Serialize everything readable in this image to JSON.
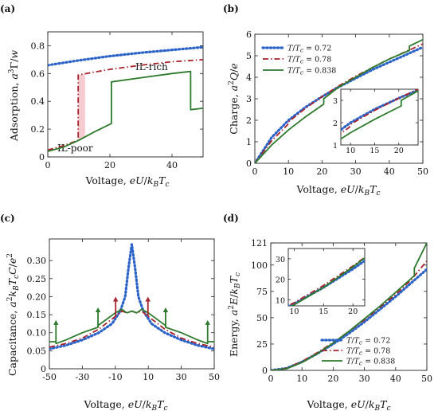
{
  "chart_data": [
    {
      "panel": "(a)",
      "type": "line",
      "xlabel": "Voltage, eU/k_BT_c",
      "ylabel": "Adsorption, a^3Γ/w",
      "xlim": [
        0,
        50
      ],
      "ylim": [
        0,
        0.9
      ],
      "xticks": [
        "0",
        "20",
        "40"
      ],
      "yticks": [
        "0",
        "0.2",
        "0.4",
        "0.6",
        "0.8"
      ],
      "annotations": [
        "IL-rich",
        "IL-poor"
      ],
      "grid": false,
      "series": [
        {
          "color": "#2b63c8",
          "style": "dotted",
          "x": [
            0,
            10,
            20,
            30,
            40,
            50
          ],
          "y": [
            0.66,
            0.695,
            0.725,
            0.75,
            0.77,
            0.79
          ]
        },
        {
          "color": "#a8232b",
          "style": "dashdot",
          "x": [
            0,
            5,
            9.8,
            9.8,
            20,
            30,
            40,
            50
          ],
          "y": [
            0.05,
            0.08,
            0.12,
            0.59,
            0.63,
            0.66,
            0.685,
            0.7
          ]
        },
        {
          "color": "#2d7a2d",
          "style": "solid",
          "x": [
            0,
            5,
            10,
            15,
            20.5,
            20.5,
            30,
            40,
            46,
            46,
            50
          ],
          "y": [
            0.04,
            0.07,
            0.12,
            0.18,
            0.24,
            0.54,
            0.57,
            0.6,
            0.615,
            0.34,
            0.35
          ]
        }
      ]
    },
    {
      "panel": "(b)",
      "type": "line",
      "xlabel": "Voltage, eU/k_BT_c",
      "ylabel": "Charge, a^2Q/e",
      "xlim": [
        0,
        50
      ],
      "ylim": [
        0,
        6
      ],
      "xticks": [
        "0",
        "10",
        "20",
        "30",
        "40",
        "50"
      ],
      "yticks": [
        "0",
        "1",
        "2",
        "3",
        "4",
        "5",
        "6"
      ],
      "legend_position": "top-left",
      "series": [
        {
          "name": "T/T_c = 0.72",
          "color": "#2b63c8",
          "style": "dotted",
          "x": [
            0,
            5,
            10,
            15,
            20,
            25,
            30,
            35,
            40,
            45,
            50
          ],
          "y": [
            0,
            1.2,
            2.0,
            2.6,
            3.1,
            3.55,
            3.95,
            4.35,
            4.7,
            5.05,
            5.4
          ]
        },
        {
          "name": "T/T_c = 0.78",
          "color": "#a8232b",
          "style": "dashdot",
          "x": [
            0,
            5,
            9.8,
            9.8,
            15,
            20,
            25,
            30,
            35,
            40,
            45,
            50
          ],
          "y": [
            0,
            1.05,
            1.8,
            1.9,
            2.55,
            3.1,
            3.6,
            4.05,
            4.45,
            4.85,
            5.2,
            5.55
          ]
        },
        {
          "name": "T/T_c = 0.838",
          "color": "#2d7a2d",
          "style": "solid",
          "x": [
            0,
            5,
            10,
            15,
            20.5,
            20.5,
            25,
            30,
            35,
            40,
            46,
            46,
            50
          ],
          "y": [
            0,
            0.85,
            1.55,
            2.15,
            2.75,
            3.0,
            3.55,
            4.0,
            4.45,
            4.85,
            5.25,
            5.45,
            5.75
          ]
        }
      ],
      "inset": {
        "xlim": [
          8,
          24
        ],
        "ylim": [
          1,
          3.5
        ],
        "xticks": [
          "10",
          "15",
          "20"
        ],
        "yticks": [
          "1",
          "2",
          "3"
        ]
      }
    },
    {
      "panel": "(c)",
      "type": "line",
      "xlabel": "Voltage, eU/k_BT_c",
      "ylabel": "Capacitance, a^2k_BT_cC/e^2",
      "xlim": [
        -50,
        50
      ],
      "ylim": [
        0,
        0.36
      ],
      "xticks": [
        "-50",
        "-30",
        "-10",
        "10",
        "30",
        "50"
      ],
      "yticks": [
        "0",
        "0.05",
        "0.10",
        "0.15",
        "0.20",
        "0.25",
        "0.30"
      ],
      "series": [
        {
          "color": "#2b63c8",
          "style": "dotted",
          "x": [
            -50,
            -40,
            -30,
            -20,
            -12,
            -7,
            -4,
            -2,
            0,
            2,
            4,
            7,
            12,
            20,
            30,
            40,
            50
          ],
          "y": [
            0.055,
            0.065,
            0.08,
            0.1,
            0.125,
            0.16,
            0.2,
            0.28,
            0.345,
            0.28,
            0.2,
            0.16,
            0.125,
            0.1,
            0.08,
            0.065,
            0.055
          ]
        },
        {
          "color": "#a8232b",
          "style": "dashdot",
          "x": [
            -50,
            -40,
            -30,
            -20,
            -10,
            -6,
            -3,
            0,
            3,
            6,
            10,
            20,
            30,
            40,
            50
          ],
          "y": [
            0.06,
            0.07,
            0.085,
            0.11,
            0.145,
            0.16,
            0.155,
            0.16,
            0.155,
            0.16,
            0.145,
            0.11,
            0.085,
            0.07,
            0.06
          ]
        },
        {
          "color": "#2d7a2d",
          "style": "solid",
          "x": [
            -50,
            -46,
            -46,
            -40,
            -30,
            -20.5,
            -20.5,
            -10,
            -6,
            -3,
            0,
            3,
            6,
            10,
            20.5,
            20.5,
            30,
            40,
            46,
            46,
            50
          ],
          "y": [
            0.075,
            0.075,
            0.07,
            0.08,
            0.1,
            0.115,
            0.12,
            0.155,
            0.165,
            0.155,
            0.16,
            0.155,
            0.165,
            0.155,
            0.12,
            0.115,
            0.1,
            0.08,
            0.07,
            0.075,
            0.075
          ]
        }
      ],
      "spikes": [
        {
          "x": -46,
          "y0": 0.075,
          "y1": 0.135,
          "color": "#2d7a2d"
        },
        {
          "x": -20.5,
          "y0": 0.115,
          "y1": 0.17,
          "color": "#2d7a2d"
        },
        {
          "x": -9.8,
          "y0": 0.145,
          "y1": 0.2,
          "color": "#a8232b"
        },
        {
          "x": 9.8,
          "y0": 0.145,
          "y1": 0.2,
          "color": "#a8232b"
        },
        {
          "x": 20.5,
          "y0": 0.115,
          "y1": 0.17,
          "color": "#2d7a2d"
        },
        {
          "x": 46,
          "y0": 0.075,
          "y1": 0.135,
          "color": "#2d7a2d"
        }
      ]
    },
    {
      "panel": "(d)",
      "type": "line",
      "xlabel": "Voltage, eU/k_BT_c",
      "ylabel": "Energy, a^2E/k_BT_c",
      "xlim": [
        0,
        50
      ],
      "ylim": [
        0,
        121
      ],
      "xticks": [
        "0",
        "10",
        "20",
        "30",
        "40",
        "50"
      ],
      "yticks": [
        "0",
        "25",
        "50",
        "75",
        "100",
        "121"
      ],
      "legend_position": "bottom-right",
      "series": [
        {
          "name": "T/T_c = 0.72",
          "color": "#2b63c8",
          "style": "dotted",
          "x": [
            0,
            5,
            10,
            15,
            20,
            25,
            30,
            35,
            40,
            45,
            50
          ],
          "y": [
            0,
            2,
            8,
            16,
            25,
            35,
            46,
            58,
            70,
            83,
            96
          ]
        },
        {
          "name": "T/T_c = 0.78",
          "color": "#a8232b",
          "style": "dashdot",
          "x": [
            0,
            5,
            10,
            15,
            20,
            25,
            30,
            35,
            40,
            45,
            50
          ],
          "y": [
            0,
            2,
            8.5,
            17,
            26.5,
            37,
            48,
            60,
            72,
            86,
            104
          ]
        },
        {
          "name": "T/T_c = 0.838",
          "color": "#2d7a2d",
          "style": "solid",
          "x": [
            0,
            5,
            10,
            15,
            20,
            25,
            30,
            35,
            40,
            46,
            46,
            50
          ],
          "y": [
            0,
            1.5,
            7.5,
            16,
            26,
            37,
            49,
            61,
            74,
            90,
            97,
            121
          ]
        }
      ],
      "inset": {
        "xlim": [
          9,
          22
        ],
        "ylim": [
          7,
          35
        ],
        "xticks": [
          "10",
          "15",
          "20"
        ],
        "yticks": [
          "10",
          "20",
          "30"
        ]
      }
    }
  ]
}
